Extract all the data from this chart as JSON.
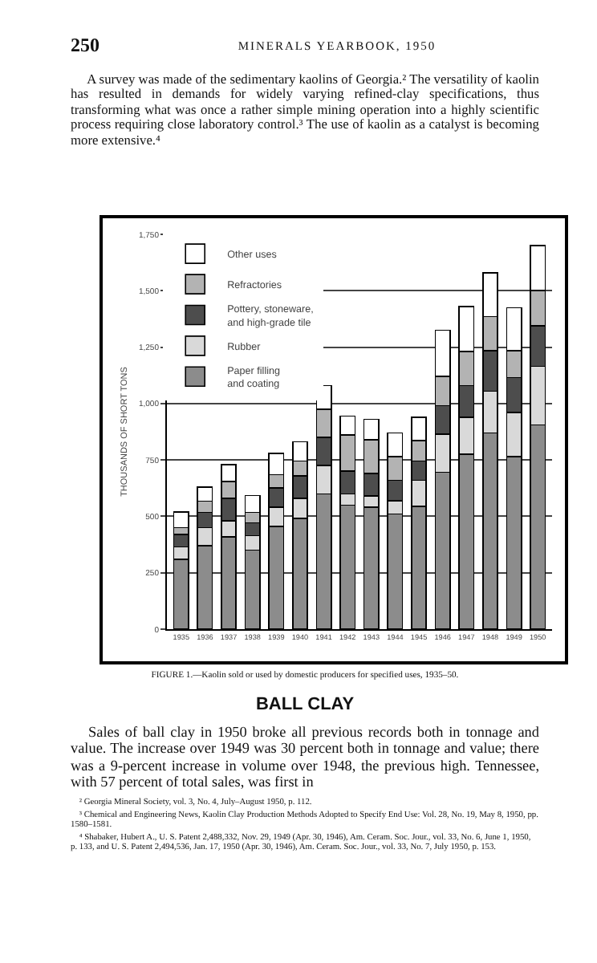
{
  "chart_data": {
    "type": "bar",
    "stacked": true,
    "title": "FIGURE 1.—Kaolin sold or used by domestic producers for specified uses, 1935–50.",
    "ylabel": "THOUSANDS OF SHORT TONS",
    "categories": [
      "1935",
      "1936",
      "1937",
      "1938",
      "1939",
      "1940",
      "1941",
      "1942",
      "1943",
      "1944",
      "1945",
      "1946",
      "1947",
      "1948",
      "1949",
      "1950"
    ],
    "series": [
      {
        "name": "Paper filling and coating",
        "color": "#8c8c8c",
        "values": [
          310,
          370,
          410,
          350,
          455,
          490,
          600,
          550,
          540,
          510,
          545,
          695,
          775,
          870,
          765,
          905
        ]
      },
      {
        "name": "Rubber",
        "color": "#d9d9d9",
        "values": [
          55,
          80,
          70,
          65,
          85,
          90,
          125,
          50,
          50,
          60,
          115,
          170,
          165,
          185,
          195,
          260
        ]
      },
      {
        "name": "Pottery, stoneware, and high-grade tile",
        "color": "#4d4d4d",
        "values": [
          55,
          68,
          100,
          57,
          85,
          100,
          125,
          100,
          100,
          90,
          85,
          125,
          140,
          180,
          155,
          180
        ]
      },
      {
        "name": "Refractories",
        "color": "#b3b3b3",
        "values": [
          30,
          50,
          75,
          45,
          60,
          65,
          125,
          160,
          150,
          105,
          90,
          130,
          150,
          150,
          120,
          155
        ]
      },
      {
        "name": "Other uses",
        "color": "#ffffff",
        "values": [
          70,
          62,
          75,
          75,
          95,
          85,
          105,
          85,
          90,
          105,
          105,
          205,
          200,
          195,
          190,
          200
        ]
      }
    ],
    "ylim": [
      0,
      1750
    ],
    "yticks": [
      0,
      250,
      500,
      750,
      {
        "value": 1000,
        "label": "1,000"
      },
      {
        "value": 1250,
        "label": "1,250"
      },
      {
        "value": 1500,
        "label": "1,500"
      },
      {
        "value": 1750,
        "label": "1,750"
      }
    ],
    "grid": "y",
    "legend": "top left",
    "annotations": [
      "250",
      "MINERALS YEARBOOK, 1950",
      "A survey was made of the sedimentary kaolins of Georgia.² The versatility of kaolin has resulted in demands for widely varying refined-clay specifications, thus transforming what was once a rather simple mining operation into a highly scientific process requiring close laboratory control.³ The use of kaolin as a catalyst is becoming more extensive.⁴",
      "BALL CLAY",
      "Sales of ball clay in 1950 broke all previous records both in tonnage and value. The increase over 1949 was 30 percent both in tonnage and value; there was a 9-percent increase in volume over 1948, the previous high. Tennessee, with 57 percent of total sales, was first in",
      "² Georgia Mineral Society, vol. 3, No. 4, July–August 1950, p. 112.",
      "³ Chemical and Engineering News, Kaolin Clay Production Methods Adopted to Specify End Use: Vol. 28, No. 19, May 8, 1950, pp. 1580–1581.",
      "⁴ Shabaker, Hubert A., U. S. Patent 2,488,332, Nov. 29, 1949 (Apr. 30, 1946), Am. Ceram. Soc. Jour., vol. 33, No. 6, June 1, 1950, p. 133, and U. S. Patent 2,494,536, Jan. 17, 1950 (Apr. 30, 1946), Am. Ceram. Soc. Jour., vol. 33, No. 7, July 1950, p. 153."
    ]
  }
}
